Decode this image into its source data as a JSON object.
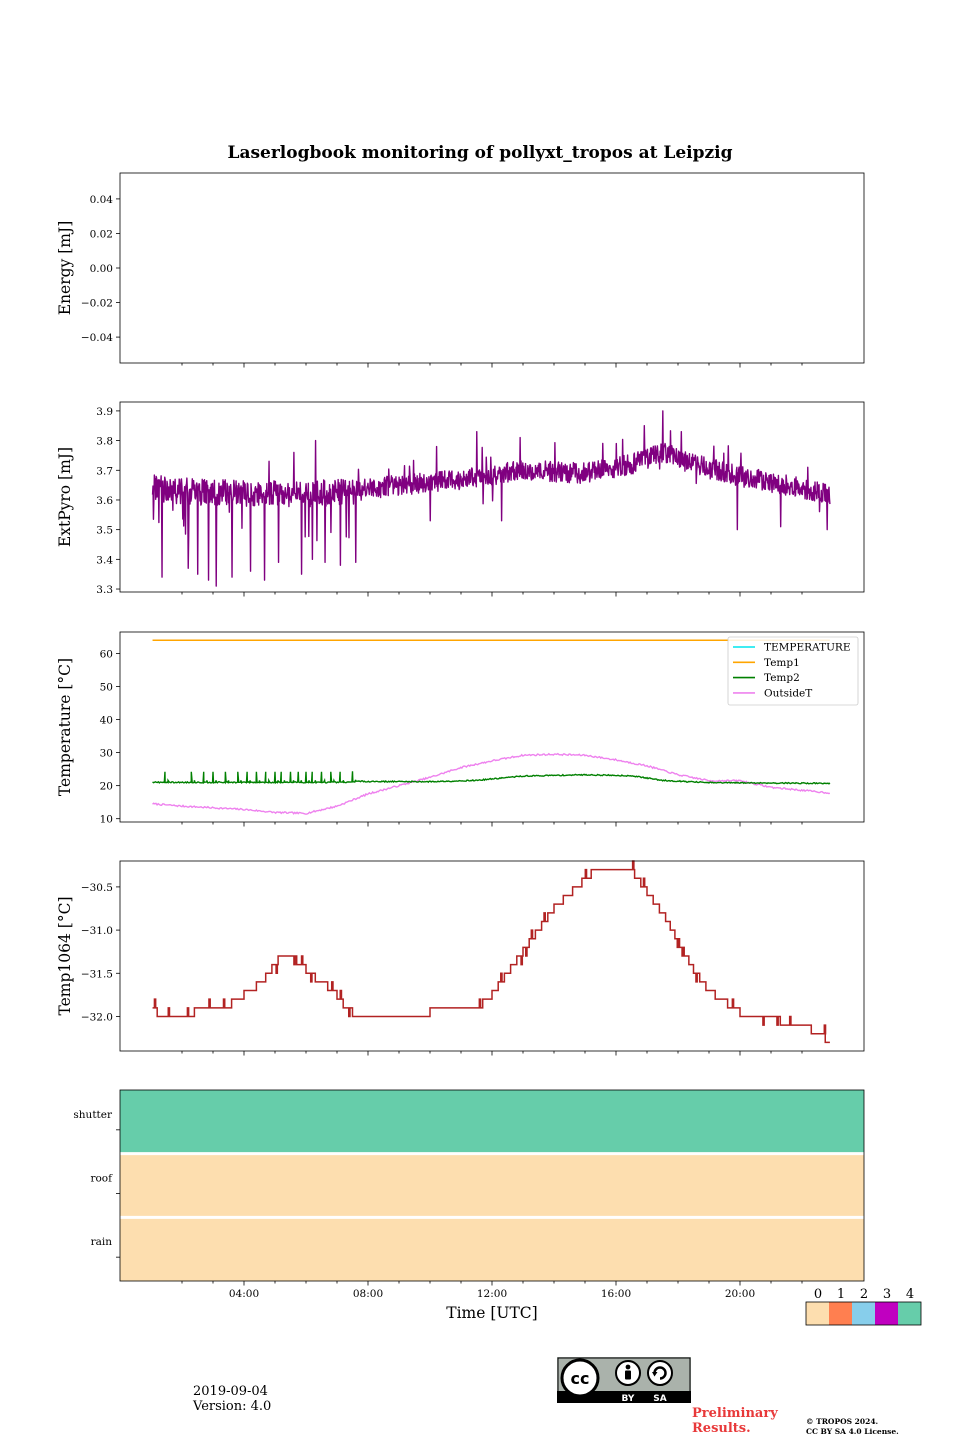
{
  "figure": {
    "title": "Laserlogbook monitoring of pollyxt_tropos at Leipzig",
    "date": "2019-09-04",
    "version": "Version: 4.0",
    "preliminary": "Preliminary Results.",
    "copyright_line1": "© TROPOS 2024.",
    "copyright_line2": "CC BY SA 4.0 License.",
    "license_badge": {
      "by": "BY",
      "sa": "SA"
    }
  },
  "colors": {
    "extpyro": "#800080",
    "temperature": "#00e5ee",
    "temp1": "#ffa500",
    "temp2": "#008000",
    "outsidet": "#ee82ee",
    "temp1064": "#b22222",
    "status0": "#fddeaf",
    "status1": "#ff7f50",
    "status2": "#87ceeb",
    "status3": "#c000c0",
    "status4": "#66cdaa"
  },
  "chart_data": [
    {
      "id": "energy",
      "type": "line",
      "ylabel": "Energy [mJ]",
      "ylim": [
        -0.055,
        0.055
      ],
      "yticks": [
        -0.04,
        -0.02,
        0.0,
        0.02,
        0.04
      ],
      "ytick_labels": [
        "−0.04",
        "−0.02",
        "0.00",
        "0.02",
        "0.04"
      ],
      "xlim": [
        0,
        24
      ],
      "series": []
    },
    {
      "id": "extpyro",
      "type": "line",
      "ylabel": "ExtPyro [mJ]",
      "ylim": [
        3.29,
        3.93
      ],
      "yticks": [
        3.3,
        3.4,
        3.5,
        3.6,
        3.7,
        3.8,
        3.9
      ],
      "ytick_labels": [
        "3.3",
        "3.4",
        "3.5",
        "3.6",
        "3.7",
        "3.8",
        "3.9"
      ],
      "xlim": [
        0,
        24
      ],
      "series": [
        {
          "name": "ExtPyro",
          "x_range": [
            1.05,
            22.9
          ],
          "trend": [
            [
              1.05,
              3.64
            ],
            [
              2.0,
              3.63
            ],
            [
              4.0,
              3.62
            ],
            [
              6.0,
              3.62
            ],
            [
              7.5,
              3.63
            ],
            [
              9.0,
              3.65
            ],
            [
              11.0,
              3.67
            ],
            [
              13.0,
              3.7
            ],
            [
              15.0,
              3.69
            ],
            [
              16.5,
              3.72
            ],
            [
              17.5,
              3.76
            ],
            [
              18.5,
              3.72
            ],
            [
              20.0,
              3.68
            ],
            [
              21.5,
              3.65
            ],
            [
              22.9,
              3.62
            ]
          ],
          "dips": [
            [
              1.35,
              3.34
            ],
            [
              2.2,
              3.37
            ],
            [
              2.5,
              3.35
            ],
            [
              2.85,
              3.33
            ],
            [
              3.1,
              3.31
            ],
            [
              3.6,
              3.34
            ],
            [
              4.2,
              3.36
            ],
            [
              4.65,
              3.33
            ],
            [
              5.1,
              3.39
            ],
            [
              5.85,
              3.35
            ],
            [
              6.2,
              3.4
            ],
            [
              6.6,
              3.39
            ],
            [
              7.1,
              3.38
            ],
            [
              7.6,
              3.39
            ],
            [
              10.0,
              3.53
            ],
            [
              12.3,
              3.53
            ],
            [
              19.9,
              3.5
            ],
            [
              21.3,
              3.51
            ],
            [
              22.8,
              3.5
            ]
          ],
          "peaks": [
            [
              4.8,
              3.73
            ],
            [
              5.6,
              3.76
            ],
            [
              6.3,
              3.8
            ],
            [
              10.2,
              3.78
            ],
            [
              11.5,
              3.83
            ],
            [
              12.9,
              3.81
            ],
            [
              16.0,
              3.79
            ],
            [
              16.9,
              3.85
            ],
            [
              17.5,
              3.9
            ],
            [
              18.1,
              3.83
            ]
          ]
        }
      ]
    },
    {
      "id": "temperature",
      "type": "line",
      "ylabel": "Temperature [°C]",
      "ylim": [
        9,
        66.5
      ],
      "yticks": [
        10,
        20,
        30,
        40,
        50,
        60
      ],
      "ytick_labels": [
        "10",
        "20",
        "30",
        "40",
        "50",
        "60"
      ],
      "xlim": [
        0,
        24
      ],
      "legend": "top-right",
      "series": [
        {
          "name": "TEMPERATURE",
          "points": []
        },
        {
          "name": "Temp1",
          "points": [
            [
              1.05,
              64
            ],
            [
              22.9,
              64
            ]
          ]
        },
        {
          "name": "Temp2",
          "base": [
            [
              1.05,
              21.0
            ],
            [
              7.4,
              21.0
            ],
            [
              7.6,
              21.3
            ],
            [
              10.0,
              21.2
            ],
            [
              11.5,
              21.6
            ],
            [
              13.0,
              22.9
            ],
            [
              15.0,
              23.3
            ],
            [
              16.5,
              23.0
            ],
            [
              17.5,
              21.6
            ],
            [
              19.0,
              20.9
            ],
            [
              22.9,
              20.7
            ]
          ],
          "spikes": [
            1.45,
            2.3,
            2.7,
            3.0,
            3.4,
            3.8,
            4.1,
            4.4,
            4.7,
            5.0,
            5.2,
            5.5,
            5.75,
            6.0,
            6.2,
            6.5,
            6.8,
            7.1,
            7.5
          ]
        },
        {
          "name": "OutsideT",
          "points": [
            [
              1.05,
              14.5
            ],
            [
              2.0,
              13.8
            ],
            [
              3.0,
              13.3
            ],
            [
              4.0,
              12.8
            ],
            [
              5.0,
              11.9
            ],
            [
              6.0,
              11.6
            ],
            [
              7.0,
              13.8
            ],
            [
              8.0,
              17.5
            ],
            [
              9.0,
              20.0
            ],
            [
              10.0,
              22.5
            ],
            [
              11.0,
              25.5
            ],
            [
              12.0,
              27.5
            ],
            [
              13.0,
              29.2
            ],
            [
              14.0,
              29.5
            ],
            [
              15.0,
              29.2
            ],
            [
              16.0,
              27.8
            ],
            [
              17.0,
              26.0
            ],
            [
              18.0,
              23.3
            ],
            [
              19.0,
              21.5
            ],
            [
              20.0,
              21.5
            ],
            [
              21.0,
              19.5
            ],
            [
              22.0,
              18.6
            ],
            [
              22.9,
              17.8
            ]
          ]
        }
      ]
    },
    {
      "id": "temp1064",
      "type": "line",
      "ylabel": "Temp1064 [°C]",
      "ylim": [
        -32.4,
        -30.2
      ],
      "yticks": [
        -32.0,
        -31.5,
        -31.0,
        -30.5
      ],
      "ytick_labels": [
        "−32.0",
        "−31.5",
        "−31.0",
        "−30.5"
      ],
      "xlim": [
        0,
        24
      ],
      "series": [
        {
          "name": "Temp1064",
          "steps": [
            [
              1.05,
              -31.9
            ],
            [
              1.2,
              -32.0
            ],
            [
              2.0,
              -32.0
            ],
            [
              2.4,
              -31.9
            ],
            [
              3.2,
              -31.9
            ],
            [
              3.6,
              -31.8
            ],
            [
              4.0,
              -31.7
            ],
            [
              4.4,
              -31.6
            ],
            [
              4.7,
              -31.5
            ],
            [
              4.9,
              -31.4
            ],
            [
              5.1,
              -31.3
            ],
            [
              5.5,
              -31.3
            ],
            [
              5.7,
              -31.4
            ],
            [
              6.0,
              -31.5
            ],
            [
              6.3,
              -31.6
            ],
            [
              6.7,
              -31.7
            ],
            [
              7.0,
              -31.8
            ],
            [
              7.2,
              -31.9
            ],
            [
              7.5,
              -32.0
            ],
            [
              9.8,
              -32.0
            ],
            [
              10.0,
              -31.9
            ],
            [
              11.5,
              -31.9
            ],
            [
              11.7,
              -31.8
            ],
            [
              12.0,
              -31.7
            ],
            [
              12.2,
              -31.6
            ],
            [
              12.4,
              -31.5
            ],
            [
              12.6,
              -31.4
            ],
            [
              12.8,
              -31.3
            ],
            [
              13.0,
              -31.2
            ],
            [
              13.2,
              -31.1
            ],
            [
              13.4,
              -31.0
            ],
            [
              13.6,
              -30.9
            ],
            [
              13.8,
              -30.8
            ],
            [
              14.0,
              -30.7
            ],
            [
              14.3,
              -30.6
            ],
            [
              14.6,
              -30.5
            ],
            [
              14.9,
              -30.4
            ],
            [
              15.2,
              -30.3
            ],
            [
              16.4,
              -30.3
            ],
            [
              16.6,
              -30.4
            ],
            [
              16.8,
              -30.5
            ],
            [
              17.0,
              -30.6
            ],
            [
              17.2,
              -30.7
            ],
            [
              17.4,
              -30.8
            ],
            [
              17.6,
              -30.9
            ],
            [
              17.75,
              -31.0
            ],
            [
              17.9,
              -31.1
            ],
            [
              18.05,
              -31.2
            ],
            [
              18.2,
              -31.3
            ],
            [
              18.35,
              -31.4
            ],
            [
              18.5,
              -31.5
            ],
            [
              18.7,
              -31.6
            ],
            [
              18.9,
              -31.7
            ],
            [
              19.2,
              -31.8
            ],
            [
              19.6,
              -31.9
            ],
            [
              20.0,
              -32.0
            ],
            [
              21.1,
              -32.0
            ],
            [
              21.3,
              -32.1
            ],
            [
              22.0,
              -32.1
            ],
            [
              22.3,
              -32.2
            ],
            [
              22.7,
              -32.2
            ],
            [
              22.75,
              -32.3
            ],
            [
              22.9,
              -32.3
            ]
          ]
        }
      ]
    },
    {
      "id": "status",
      "type": "heatmap",
      "rows": [
        "shutter",
        "roof",
        "rain"
      ],
      "values": [
        4,
        0,
        0
      ],
      "xlabel": "Time [UTC]",
      "xlim": [
        0,
        24
      ],
      "xticks": [
        4,
        8,
        12,
        16,
        20
      ],
      "xtick_labels": [
        "04:00",
        "08:00",
        "12:00",
        "16:00",
        "20:00"
      ],
      "colorbar": {
        "ticks": [
          "0",
          "1",
          "2",
          "3",
          "4"
        ]
      }
    }
  ]
}
